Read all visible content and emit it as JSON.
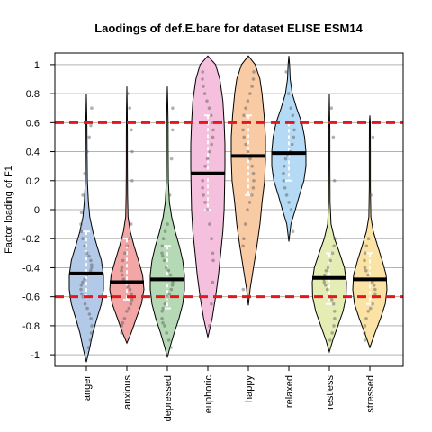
{
  "chart_data": {
    "type": "violin",
    "title": "Laodings of def.E.bare for dataset ELISE ESM14",
    "xlabel": "",
    "ylabel": "Factor loading of F1",
    "ylim": [
      -1.08,
      1.08
    ],
    "yticks": [
      -1,
      -0.8,
      -0.6,
      -0.4,
      -0.2,
      0,
      0.2,
      0.4,
      0.6,
      0.8,
      1
    ],
    "ytick_labels": [
      "-1",
      "-0.8",
      "-0.6",
      "-0.4",
      "-0.2",
      "0",
      "0.2",
      "0.4",
      "0.6",
      "0.8",
      "1"
    ],
    "grid": true,
    "reference_lines": [
      0.6,
      -0.6
    ],
    "reference_line_color": "#e8161b",
    "categories": [
      "anger",
      "anxious",
      "depressed",
      "euphoric",
      "happy",
      "relaxed",
      "restless",
      "stressed"
    ],
    "series": [
      {
        "category": "anger",
        "color": "#b3c9e8",
        "median": -0.44,
        "profile": [
          [
            -1.05,
            0
          ],
          [
            -0.95,
            0.2
          ],
          [
            -0.85,
            0.38
          ],
          [
            -0.75,
            0.62
          ],
          [
            -0.65,
            0.88
          ],
          [
            -0.55,
            1.0
          ],
          [
            -0.45,
            1.0
          ],
          [
            -0.35,
            0.88
          ],
          [
            -0.25,
            0.62
          ],
          [
            -0.15,
            0.38
          ],
          [
            -0.05,
            0.2
          ],
          [
            0.05,
            0.12
          ],
          [
            0.2,
            0.06
          ],
          [
            0.4,
            0.04
          ],
          [
            0.6,
            0.03
          ],
          [
            0.8,
            0
          ]
        ],
        "points": [
          -0.95,
          -0.9,
          -0.85,
          -0.8,
          -0.75,
          -0.72,
          -0.68,
          -0.65,
          -0.6,
          -0.58,
          -0.55,
          -0.52,
          -0.5,
          -0.48,
          -0.45,
          -0.44,
          -0.42,
          -0.4,
          -0.38,
          -0.35,
          -0.32,
          -0.3,
          -0.25,
          -0.2,
          -0.15,
          -0.1,
          -0.02,
          0.1,
          0.25,
          0.4,
          0.5,
          0.58,
          0.7
        ]
      },
      {
        "category": "anxious",
        "color": "#f2a6a6",
        "median": -0.5,
        "profile": [
          [
            -0.92,
            0
          ],
          [
            -0.85,
            0.25
          ],
          [
            -0.75,
            0.55
          ],
          [
            -0.65,
            0.85
          ],
          [
            -0.55,
            1.0
          ],
          [
            -0.45,
            0.92
          ],
          [
            -0.35,
            0.68
          ],
          [
            -0.25,
            0.42
          ],
          [
            -0.15,
            0.2
          ],
          [
            -0.05,
            0.07
          ],
          [
            0.1,
            0.04
          ],
          [
            0.3,
            0.03
          ],
          [
            0.5,
            0.03
          ],
          [
            0.7,
            0.02
          ],
          [
            0.85,
            0
          ]
        ],
        "points": [
          -0.85,
          -0.8,
          -0.78,
          -0.75,
          -0.7,
          -0.68,
          -0.65,
          -0.62,
          -0.6,
          -0.58,
          -0.55,
          -0.53,
          -0.5,
          -0.48,
          -0.45,
          -0.42,
          -0.4,
          -0.35,
          -0.3,
          -0.25,
          -0.2,
          -0.1,
          0.2,
          0.4,
          0.55,
          0.7,
          0.8
        ]
      },
      {
        "category": "depressed",
        "color": "#b4d9b4",
        "median": -0.48,
        "profile": [
          [
            -1.02,
            0
          ],
          [
            -0.95,
            0.15
          ],
          [
            -0.85,
            0.4
          ],
          [
            -0.75,
            0.68
          ],
          [
            -0.65,
            0.9
          ],
          [
            -0.55,
            1.0
          ],
          [
            -0.45,
            1.0
          ],
          [
            -0.35,
            0.9
          ],
          [
            -0.25,
            0.7
          ],
          [
            -0.15,
            0.45
          ],
          [
            -0.05,
            0.25
          ],
          [
            0.05,
            0.12
          ],
          [
            0.2,
            0.06
          ],
          [
            0.4,
            0.05
          ],
          [
            0.6,
            0.04
          ],
          [
            0.75,
            0.02
          ],
          [
            0.85,
            0
          ]
        ],
        "points": [
          -0.95,
          -0.9,
          -0.85,
          -0.8,
          -0.78,
          -0.75,
          -0.7,
          -0.68,
          -0.65,
          -0.6,
          -0.58,
          -0.55,
          -0.52,
          -0.5,
          -0.48,
          -0.45,
          -0.42,
          -0.4,
          -0.35,
          -0.32,
          -0.3,
          -0.25,
          -0.2,
          -0.15,
          -0.1,
          0.1,
          0.35,
          0.55,
          0.7
        ]
      },
      {
        "category": "euphoric",
        "color": "#f5c0dd",
        "median": 0.25,
        "profile": [
          [
            -0.88,
            0
          ],
          [
            -0.75,
            0.25
          ],
          [
            -0.6,
            0.45
          ],
          [
            -0.45,
            0.62
          ],
          [
            -0.3,
            0.75
          ],
          [
            -0.15,
            0.88
          ],
          [
            0.0,
            0.95
          ],
          [
            0.15,
            0.98
          ],
          [
            0.3,
            1.0
          ],
          [
            0.45,
            1.0
          ],
          [
            0.6,
            0.95
          ],
          [
            0.75,
            0.88
          ],
          [
            0.9,
            0.7
          ],
          [
            1.0,
            0.45
          ],
          [
            1.06,
            0
          ]
        ],
        "points": [
          -0.8,
          -0.65,
          -0.5,
          -0.35,
          -0.3,
          -0.2,
          -0.1,
          0.0,
          0.05,
          0.1,
          0.15,
          0.2,
          0.25,
          0.3,
          0.35,
          0.4,
          0.45,
          0.5,
          0.55,
          0.6,
          0.65,
          0.7,
          0.75,
          0.8,
          0.85,
          0.9,
          0.95
        ]
      },
      {
        "category": "happy",
        "color": "#f9cba5",
        "median": 0.37,
        "profile": [
          [
            -0.66,
            0
          ],
          [
            -0.55,
            0.1
          ],
          [
            -0.4,
            0.3
          ],
          [
            -0.25,
            0.5
          ],
          [
            -0.1,
            0.68
          ],
          [
            0.05,
            0.8
          ],
          [
            0.2,
            0.95
          ],
          [
            0.35,
            1.0
          ],
          [
            0.5,
            1.0
          ],
          [
            0.65,
            0.92
          ],
          [
            0.8,
            0.8
          ],
          [
            0.9,
            0.68
          ],
          [
            1.0,
            0.4
          ],
          [
            1.06,
            0
          ]
        ],
        "points": [
          -0.55,
          -0.25,
          -0.2,
          -0.1,
          0.0,
          0.05,
          0.1,
          0.15,
          0.2,
          0.25,
          0.3,
          0.35,
          0.4,
          0.45,
          0.5,
          0.55,
          0.6,
          0.65,
          0.7,
          0.75,
          0.8,
          0.85,
          0.9,
          0.95
        ]
      },
      {
        "category": "relaxed",
        "color": "#b5daf5",
        "median": 0.39,
        "profile": [
          [
            -0.22,
            0
          ],
          [
            -0.1,
            0.12
          ],
          [
            0.0,
            0.38
          ],
          [
            0.1,
            0.62
          ],
          [
            0.2,
            0.88
          ],
          [
            0.3,
            1.0
          ],
          [
            0.4,
            1.0
          ],
          [
            0.5,
            0.92
          ],
          [
            0.6,
            0.75
          ],
          [
            0.7,
            0.45
          ],
          [
            0.8,
            0.2
          ],
          [
            0.9,
            0.08
          ],
          [
            1.0,
            0.04
          ],
          [
            1.06,
            0
          ]
        ],
        "points": [
          -0.15,
          0.0,
          0.05,
          0.1,
          0.15,
          0.2,
          0.25,
          0.3,
          0.35,
          0.38,
          0.4,
          0.45,
          0.5,
          0.55,
          0.6,
          0.65,
          0.7,
          0.8,
          0.95
        ]
      },
      {
        "category": "restless",
        "color": "#e6edb4",
        "median": -0.47,
        "profile": [
          [
            -0.98,
            0
          ],
          [
            -0.9,
            0.2
          ],
          [
            -0.8,
            0.5
          ],
          [
            -0.7,
            0.8
          ],
          [
            -0.6,
            0.98
          ],
          [
            -0.5,
            1.0
          ],
          [
            -0.4,
            0.88
          ],
          [
            -0.3,
            0.6
          ],
          [
            -0.2,
            0.3
          ],
          [
            -0.1,
            0.1
          ],
          [
            0.05,
            0.04
          ],
          [
            0.3,
            0.03
          ],
          [
            0.55,
            0.03
          ],
          [
            0.8,
            0
          ]
        ],
        "points": [
          -0.9,
          -0.85,
          -0.8,
          -0.75,
          -0.7,
          -0.65,
          -0.62,
          -0.6,
          -0.55,
          -0.52,
          -0.5,
          -0.48,
          -0.45,
          -0.42,
          -0.4,
          -0.35,
          -0.3,
          -0.25,
          -0.2,
          0.2,
          0.5,
          0.7
        ]
      },
      {
        "category": "stressed",
        "color": "#fbe3a5",
        "median": -0.48,
        "profile": [
          [
            -0.95,
            0
          ],
          [
            -0.85,
            0.3
          ],
          [
            -0.75,
            0.62
          ],
          [
            -0.65,
            0.9
          ],
          [
            -0.55,
            1.0
          ],
          [
            -0.45,
            0.95
          ],
          [
            -0.35,
            0.72
          ],
          [
            -0.25,
            0.45
          ],
          [
            -0.15,
            0.2
          ],
          [
            -0.05,
            0.06
          ],
          [
            0.15,
            0.03
          ],
          [
            0.4,
            0.03
          ],
          [
            0.6,
            0.025
          ],
          [
            0.65,
            0
          ]
        ],
        "points": [
          -0.9,
          -0.85,
          -0.8,
          -0.75,
          -0.7,
          -0.68,
          -0.65,
          -0.6,
          -0.58,
          -0.55,
          -0.52,
          -0.5,
          -0.48,
          -0.45,
          -0.42,
          -0.4,
          -0.35,
          -0.3,
          -0.25,
          -0.2,
          0.1,
          0.5,
          0.6
        ]
      }
    ]
  }
}
